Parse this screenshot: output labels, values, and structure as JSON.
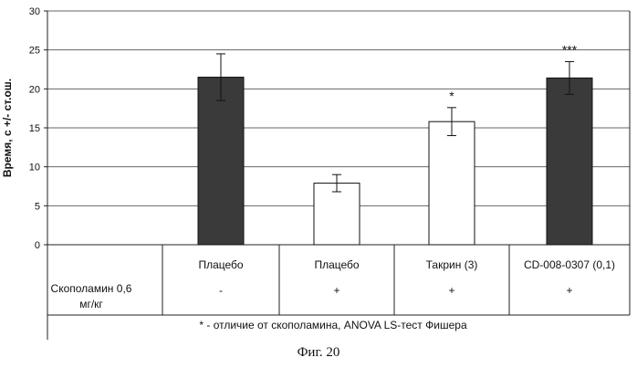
{
  "chart_data": {
    "type": "bar",
    "ylabel": "Время, с +/- ст.ош.",
    "ylim": [
      0,
      30
    ],
    "yticks": [
      0,
      5,
      10,
      15,
      20,
      25,
      30
    ],
    "grid": true,
    "row_label": "Скополамин 0,6 мг/кг",
    "series": [
      {
        "name": "Время, с",
        "values": [
          21.5,
          7.9,
          15.8,
          21.4
        ],
        "errors": [
          3.0,
          1.1,
          1.8,
          2.1
        ]
      }
    ],
    "categories": [
      "Плацебо",
      "Плацебо",
      "Такрин (3)",
      "CD-008-0307 (0,1)"
    ],
    "scopolamine": [
      "-",
      "+",
      "+",
      "+"
    ],
    "bar_colors": [
      "#3a3a3a",
      "#ffffff",
      "#ffffff",
      "#3a3a3a"
    ],
    "significance": [
      "",
      "",
      "*",
      "***"
    ],
    "footnote": "* - отличие от скополамина, ANOVA LS-тест Фишера"
  },
  "caption": "Фиг. 20"
}
